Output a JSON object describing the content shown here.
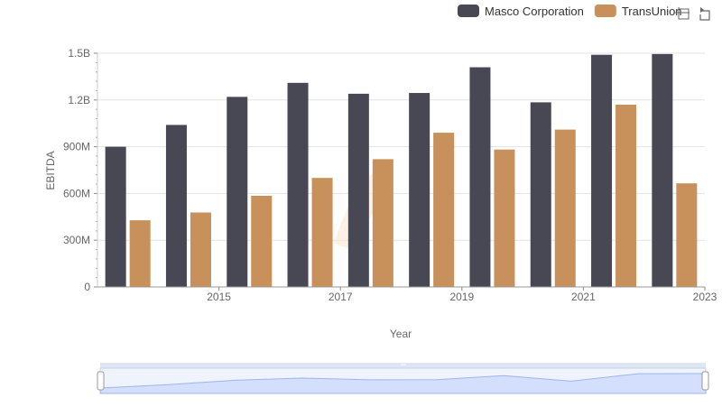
{
  "chart_data": {
    "type": "bar",
    "x": [
      2014,
      2015,
      2016,
      2017,
      2018,
      2019,
      2020,
      2021,
      2022,
      2023
    ],
    "x_tick_labels": [
      "2015",
      "2017",
      "2019",
      "2021",
      "2023"
    ],
    "y_tick_labels": [
      "0",
      "300M",
      "600M",
      "900M",
      "1.2B",
      "1.5B"
    ],
    "series": [
      {
        "name": "Masco Corporation",
        "color": "#484855",
        "values": [
          900000000,
          1040000000,
          1220000000,
          1310000000,
          1240000000,
          1245000000,
          1410000000,
          1185000000,
          1490000000,
          1495000000
        ]
      },
      {
        "name": "TransUnion",
        "color": "#c8915c",
        "values": [
          428000000,
          478000000,
          585000000,
          700000000,
          820000000,
          990000000,
          882000000,
          1010000000,
          1170000000,
          665000000
        ]
      }
    ],
    "xlabel": "Year",
    "ylabel": "EBITDA",
    "ylim": [
      0,
      1500000000
    ],
    "grid": true,
    "legend": "top-right"
  },
  "toolbar": {
    "icons": [
      "crosshair-icon",
      "reset-icon"
    ]
  }
}
